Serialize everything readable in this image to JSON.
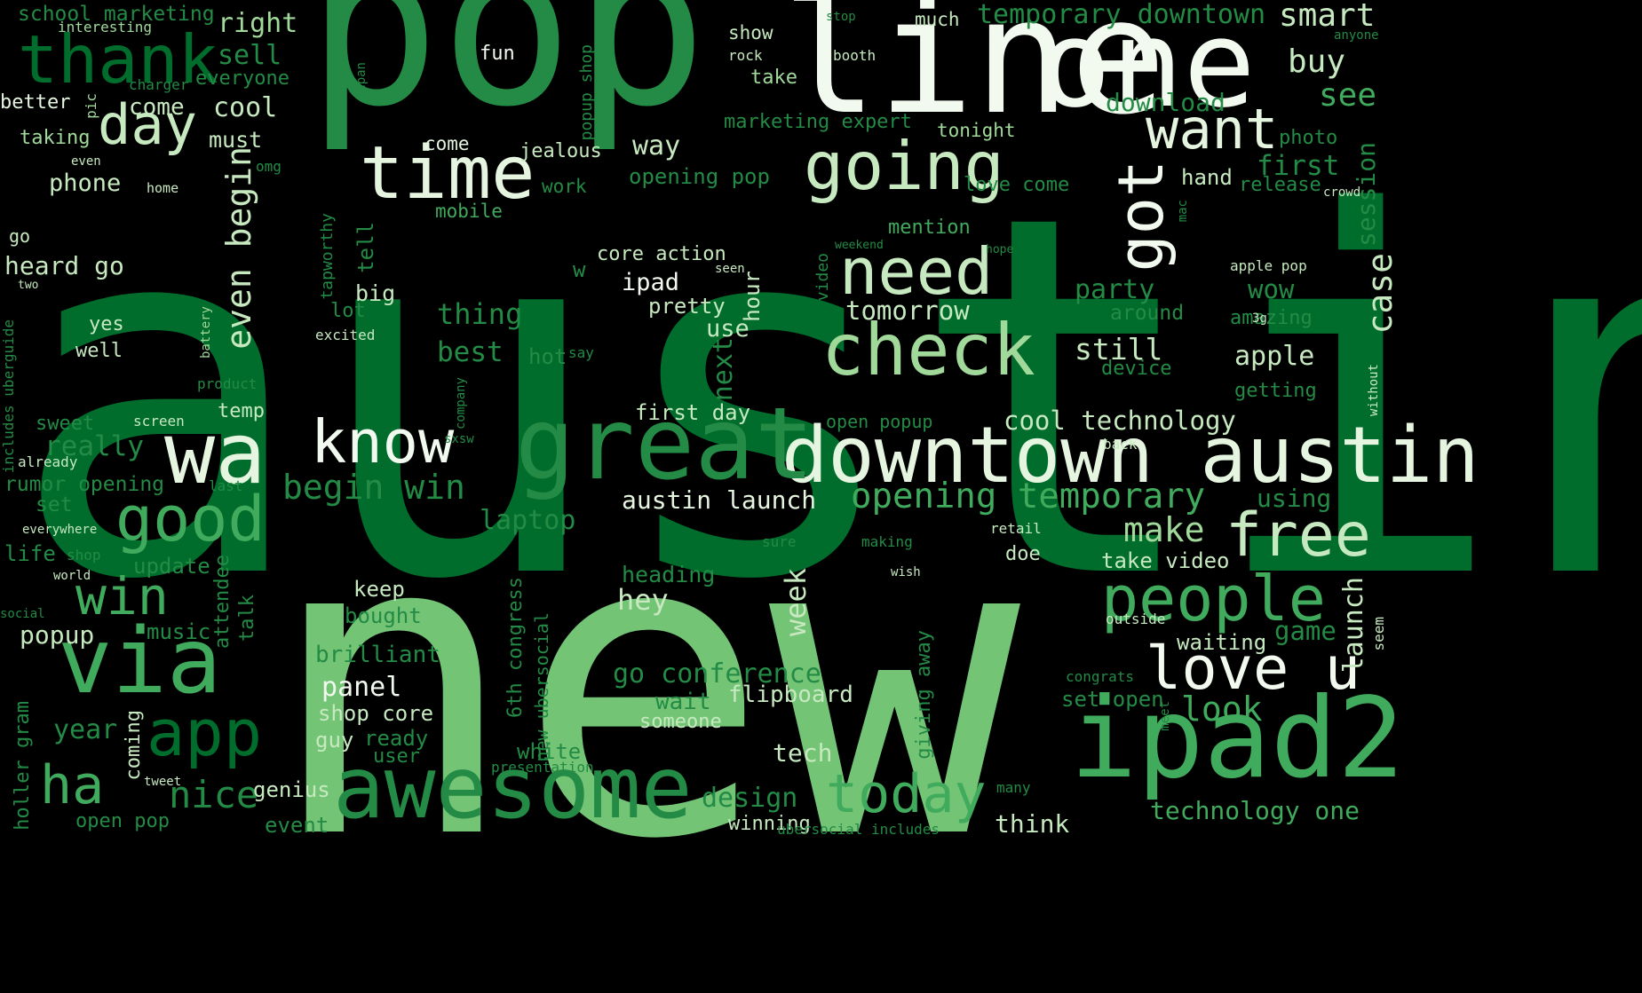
{
  "wordcloud": {
    "background": "#000000",
    "palette": [
      "#F2FAEF",
      "#C7E9C0",
      "#A1D99B",
      "#74C476",
      "#41AB5D",
      "#238B45",
      "#006D2C",
      "#00441B"
    ],
    "words": [
      {
        "text": "austin",
        "color": "#006D2C"
      },
      {
        "text": "new",
        "color": "#74C476"
      },
      {
        "text": "pop",
        "color": "#238B45"
      },
      {
        "text": "line",
        "color": "#F2FAEF"
      },
      {
        "text": "one",
        "color": "#F2FAEF"
      },
      {
        "text": "ipad2",
        "color": "#41AB5D"
      },
      {
        "text": "downtown austin",
        "color": "#E5F5E0"
      },
      {
        "text": "great",
        "color": "#238B45"
      },
      {
        "text": "awesome",
        "color": "#238B45"
      },
      {
        "text": "wa",
        "color": "#E5F5E0"
      },
      {
        "text": "via",
        "color": "#41AB5D"
      },
      {
        "text": "thank",
        "color": "#006D2C"
      },
      {
        "text": "time",
        "color": "#E5F5E0"
      },
      {
        "text": "going",
        "color": "#C7E9C0"
      },
      {
        "text": "need",
        "color": "#C7E9C0"
      },
      {
        "text": "check",
        "color": "#A1D99B"
      },
      {
        "text": "want",
        "color": "#E5F5E0"
      },
      {
        "text": "got",
        "color": "#F2FAEF"
      },
      {
        "text": "free",
        "color": "#C7E9C0"
      },
      {
        "text": "people",
        "color": "#41AB5D"
      },
      {
        "text": "love u",
        "color": "#F2FAEF"
      },
      {
        "text": "know",
        "color": "#F2FAEF"
      },
      {
        "text": "good",
        "color": "#41AB5D"
      },
      {
        "text": "day",
        "color": "#C7E9C0"
      },
      {
        "text": "win",
        "color": "#41AB5D"
      },
      {
        "text": "app",
        "color": "#006D2C"
      },
      {
        "text": "ha",
        "color": "#41AB5D"
      },
      {
        "text": "today",
        "color": "#41AB5D"
      },
      {
        "text": "opening temporary",
        "color": "#41AB5D"
      },
      {
        "text": "begin win",
        "color": "#238B45"
      },
      {
        "text": "even begin",
        "color": "#C7E9C0"
      },
      {
        "text": "nice",
        "color": "#238B45"
      },
      {
        "text": "look",
        "color": "#41AB5D"
      },
      {
        "text": "make",
        "color": "#A1D99B"
      },
      {
        "text": "case",
        "color": "#C7E9C0"
      },
      {
        "text": "see",
        "color": "#41AB5D"
      },
      {
        "text": "buy",
        "color": "#C7E9C0"
      },
      {
        "text": "smart",
        "color": "#C7E9C0"
      },
      {
        "text": "cool technology",
        "color": "#C7E9C0"
      },
      {
        "text": "austin launch",
        "color": "#E5F5E0"
      },
      {
        "text": "go conference",
        "color": "#238B45"
      },
      {
        "text": "design",
        "color": "#238B45"
      },
      {
        "text": "tech",
        "color": "#C7E9C0"
      },
      {
        "text": "technology one",
        "color": "#41AB5D"
      },
      {
        "text": "think",
        "color": "#C7E9C0"
      },
      {
        "text": "temporary downtown",
        "color": "#238B45"
      },
      {
        "text": "school marketing",
        "color": "#238B45"
      },
      {
        "text": "right",
        "color": "#A1D99B"
      },
      {
        "text": "sell",
        "color": "#238B45"
      },
      {
        "text": "interesting",
        "color": "#A1D99B"
      },
      {
        "text": "much",
        "color": "#C7E9C0"
      },
      {
        "text": "stop",
        "color": "#238B45"
      },
      {
        "text": "show",
        "color": "#C7E9C0"
      },
      {
        "text": "fun",
        "color": "#F2FAEF"
      },
      {
        "text": "rock",
        "color": "#C7E9C0"
      },
      {
        "text": "booth",
        "color": "#C7E9C0"
      },
      {
        "text": "anyone",
        "color": "#238B45"
      },
      {
        "text": "everyone",
        "color": "#238B45"
      },
      {
        "text": "charger",
        "color": "#238B45"
      },
      {
        "text": "take",
        "color": "#A1D99B"
      },
      {
        "text": "download",
        "color": "#238B45"
      },
      {
        "text": "better",
        "color": "#E5F5E0"
      },
      {
        "text": "pic",
        "color": "#A1D99B"
      },
      {
        "text": "come",
        "color": "#C7E9C0"
      },
      {
        "text": "cool",
        "color": "#C7E9C0"
      },
      {
        "text": "must",
        "color": "#C7E9C0"
      },
      {
        "text": "marketing expert",
        "color": "#238B45"
      },
      {
        "text": "tonight",
        "color": "#A1D99B"
      },
      {
        "text": "photo",
        "color": "#238B45"
      },
      {
        "text": "taking",
        "color": "#A1D99B"
      },
      {
        "text": "come",
        "color": "#E5F5E0"
      },
      {
        "text": "jealous",
        "color": "#C7E9C0"
      },
      {
        "text": "way",
        "color": "#C7E9C0"
      },
      {
        "text": "even",
        "color": "#C7E9C0"
      },
      {
        "text": "omg",
        "color": "#238B45"
      },
      {
        "text": "phone",
        "color": "#C7E9C0"
      },
      {
        "text": "home",
        "color": "#C7E9C0"
      },
      {
        "text": "work",
        "color": "#238B45"
      },
      {
        "text": "opening pop",
        "color": "#238B45"
      },
      {
        "text": "first",
        "color": "#238B45"
      },
      {
        "text": "hand",
        "color": "#C7E9C0"
      },
      {
        "text": "release",
        "color": "#238B45"
      },
      {
        "text": "crowd",
        "color": "#C7E9C0"
      },
      {
        "text": "love come",
        "color": "#238B45"
      },
      {
        "text": "session",
        "color": "#238B45"
      },
      {
        "text": "mobile",
        "color": "#41AB5D"
      },
      {
        "text": "go",
        "color": "#C7E9C0"
      },
      {
        "text": "mention",
        "color": "#41AB5D"
      },
      {
        "text": "weekend",
        "color": "#238B45"
      },
      {
        "text": "hope",
        "color": "#238B45"
      },
      {
        "text": "core action",
        "color": "#C7E9C0"
      },
      {
        "text": "seen",
        "color": "#C7E9C0"
      },
      {
        "text": "apple pop",
        "color": "#C7E9C0"
      },
      {
        "text": "heard go",
        "color": "#C7E9C0"
      },
      {
        "text": "two",
        "color": "#C7E9C0"
      },
      {
        "text": "tell",
        "color": "#238B45"
      },
      {
        "text": "ipad",
        "color": "#F2FAEF"
      },
      {
        "text": "party",
        "color": "#238B45"
      },
      {
        "text": "wow",
        "color": "#238B45"
      },
      {
        "text": "big",
        "color": "#C7E9C0"
      },
      {
        "text": "lot",
        "color": "#238B45"
      },
      {
        "text": "pretty",
        "color": "#C7E9C0"
      },
      {
        "text": "hour",
        "color": "#C7E9C0"
      },
      {
        "text": "tomorrow",
        "color": "#C7E9C0"
      },
      {
        "text": "around",
        "color": "#238B45"
      },
      {
        "text": "amazing",
        "color": "#238B45"
      },
      {
        "text": "yes",
        "color": "#C7E9C0"
      },
      {
        "text": "excited",
        "color": "#C7E9C0"
      },
      {
        "text": "thing",
        "color": "#238B45"
      },
      {
        "text": "use",
        "color": "#C7E9C0"
      },
      {
        "text": "still",
        "color": "#C7E9C0"
      },
      {
        "text": "apple",
        "color": "#C7E9C0"
      },
      {
        "text": "well",
        "color": "#C7E9C0"
      },
      {
        "text": "battery",
        "color": "#A1D99B"
      },
      {
        "text": "best",
        "color": "#238B45"
      },
      {
        "text": "hot",
        "color": "#238B45"
      },
      {
        "text": "say",
        "color": "#238B45"
      },
      {
        "text": "next",
        "color": "#238B45"
      },
      {
        "text": "device",
        "color": "#238B45"
      },
      {
        "text": "video",
        "color": "#238B45"
      },
      {
        "text": "product",
        "color": "#238B45"
      },
      {
        "text": "getting",
        "color": "#238B45"
      },
      {
        "text": "without",
        "color": "#C7E9C0"
      },
      {
        "text": "temp",
        "color": "#C7E9C0"
      },
      {
        "text": "first day",
        "color": "#C7E9C0"
      },
      {
        "text": "sweet",
        "color": "#238B45"
      },
      {
        "text": "screen",
        "color": "#C7E9C0"
      },
      {
        "text": "open popup",
        "color": "#238B45"
      },
      {
        "text": "really",
        "color": "#238B45"
      },
      {
        "text": "back",
        "color": "#C7E9C0"
      },
      {
        "text": "already",
        "color": "#C7E9C0"
      },
      {
        "text": "rumor opening",
        "color": "#238B45"
      },
      {
        "text": "set",
        "color": "#238B45"
      },
      {
        "text": "laptop",
        "color": "#238B45"
      },
      {
        "text": "using",
        "color": "#238B45"
      },
      {
        "text": "retail",
        "color": "#C7E9C0"
      },
      {
        "text": "everywhere",
        "color": "#C7E9C0"
      },
      {
        "text": "sure",
        "color": "#238B45"
      },
      {
        "text": "making",
        "color": "#238B45"
      },
      {
        "text": "life",
        "color": "#238B45"
      },
      {
        "text": "shop",
        "color": "#238B45"
      },
      {
        "text": "update",
        "color": "#238B45"
      },
      {
        "text": "doe",
        "color": "#C7E9C0"
      },
      {
        "text": "take video",
        "color": "#C7E9C0"
      },
      {
        "text": "world",
        "color": "#C7E9C0"
      },
      {
        "text": "heading",
        "color": "#238B45"
      },
      {
        "text": "wish",
        "color": "#C7E9C0"
      },
      {
        "text": "keep",
        "color": "#C7E9C0"
      },
      {
        "text": "hey",
        "color": "#C7E9C0"
      },
      {
        "text": "week",
        "color": "#C7E9C0"
      },
      {
        "text": "launch",
        "color": "#C7E9C0"
      },
      {
        "text": "bought",
        "color": "#238B45"
      },
      {
        "text": "popup",
        "color": "#C7E9C0"
      },
      {
        "text": "music",
        "color": "#238B45"
      },
      {
        "text": "outside",
        "color": "#C7E9C0"
      },
      {
        "text": "game",
        "color": "#238B45"
      },
      {
        "text": "waiting",
        "color": "#C7E9C0"
      },
      {
        "text": "seem",
        "color": "#C7E9C0"
      },
      {
        "text": "brilliant",
        "color": "#238B45"
      },
      {
        "text": "6th congress",
        "color": "#238B45"
      },
      {
        "text": "new ubersocial",
        "color": "#238B45"
      },
      {
        "text": "giving away",
        "color": "#238B45"
      },
      {
        "text": "attendee",
        "color": "#238B45"
      },
      {
        "text": "talk",
        "color": "#238B45"
      },
      {
        "text": "panel",
        "color": "#F2FAEF"
      },
      {
        "text": "wait",
        "color": "#238B45"
      },
      {
        "text": "flipboard",
        "color": "#C7E9C0"
      },
      {
        "text": "congrats",
        "color": "#238B45"
      },
      {
        "text": "set open",
        "color": "#238B45"
      },
      {
        "text": "meet",
        "color": "#238B45"
      },
      {
        "text": "shop core",
        "color": "#C7E9C0"
      },
      {
        "text": "year",
        "color": "#238B45"
      },
      {
        "text": "guy",
        "color": "#C7E9C0"
      },
      {
        "text": "ready",
        "color": "#238B45"
      },
      {
        "text": "someone",
        "color": "#C7E9C0"
      },
      {
        "text": "white",
        "color": "#238B45"
      },
      {
        "text": "user",
        "color": "#238B45"
      },
      {
        "text": "coming",
        "color": "#C7E9C0"
      },
      {
        "text": "presentation",
        "color": "#238B45"
      },
      {
        "text": "holler gram",
        "color": "#238B45"
      },
      {
        "text": "tweet",
        "color": "#C7E9C0"
      },
      {
        "text": "genius",
        "color": "#C7E9C0"
      },
      {
        "text": "open pop",
        "color": "#238B45"
      },
      {
        "text": "event",
        "color": "#238B45"
      },
      {
        "text": "winning",
        "color": "#C7E9C0"
      },
      {
        "text": "ubersocial includes",
        "color": "#238B45"
      },
      {
        "text": "many",
        "color": "#238B45"
      },
      {
        "text": "popup shop",
        "color": "#238B45"
      },
      {
        "text": "japan",
        "color": "#238B45"
      },
      {
        "text": "mac",
        "color": "#238B45"
      },
      {
        "text": "3g",
        "color": "#C7E9C0"
      },
      {
        "text": "company",
        "color": "#238B45"
      },
      {
        "text": "social",
        "color": "#238B45"
      },
      {
        "text": "includes uberguide",
        "color": "#238B45"
      },
      {
        "text": "tapworthy",
        "color": "#238B45"
      },
      {
        "text": "last",
        "color": "#238B45"
      },
      {
        "text": "sxsw",
        "color": "#238B45"
      },
      {
        "text": "w",
        "color": "#238B45"
      }
    ]
  }
}
